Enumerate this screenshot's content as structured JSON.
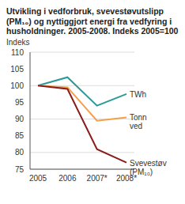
{
  "chart_data": {
    "type": "line",
    "title": "Utvikling i vedforbruk, svevestøvutslipp (PM₁₀) og nyttiggjort energi fra vedfyring i husholdninger. 2005-2008. Indeks 2005=100",
    "y_label": "Indeks",
    "categories": [
      "2005",
      "2006",
      "2007*",
      "2008*"
    ],
    "series": [
      {
        "name": "TWh",
        "color": "#2a9a98",
        "values": [
          100,
          102.5,
          94,
          97.5
        ]
      },
      {
        "name": "Tonn ved",
        "color": "#f4a04a",
        "values": [
          100,
          99.5,
          89.5,
          90.5
        ]
      },
      {
        "name": "Svevestøv (PM₁₀)",
        "color": "#8c1c1c",
        "values": [
          100,
          99,
          81,
          77
        ]
      }
    ],
    "ylim": [
      75,
      110
    ],
    "yticks": [
      75,
      80,
      85,
      90,
      95,
      100,
      105,
      110
    ],
    "grid": true
  }
}
